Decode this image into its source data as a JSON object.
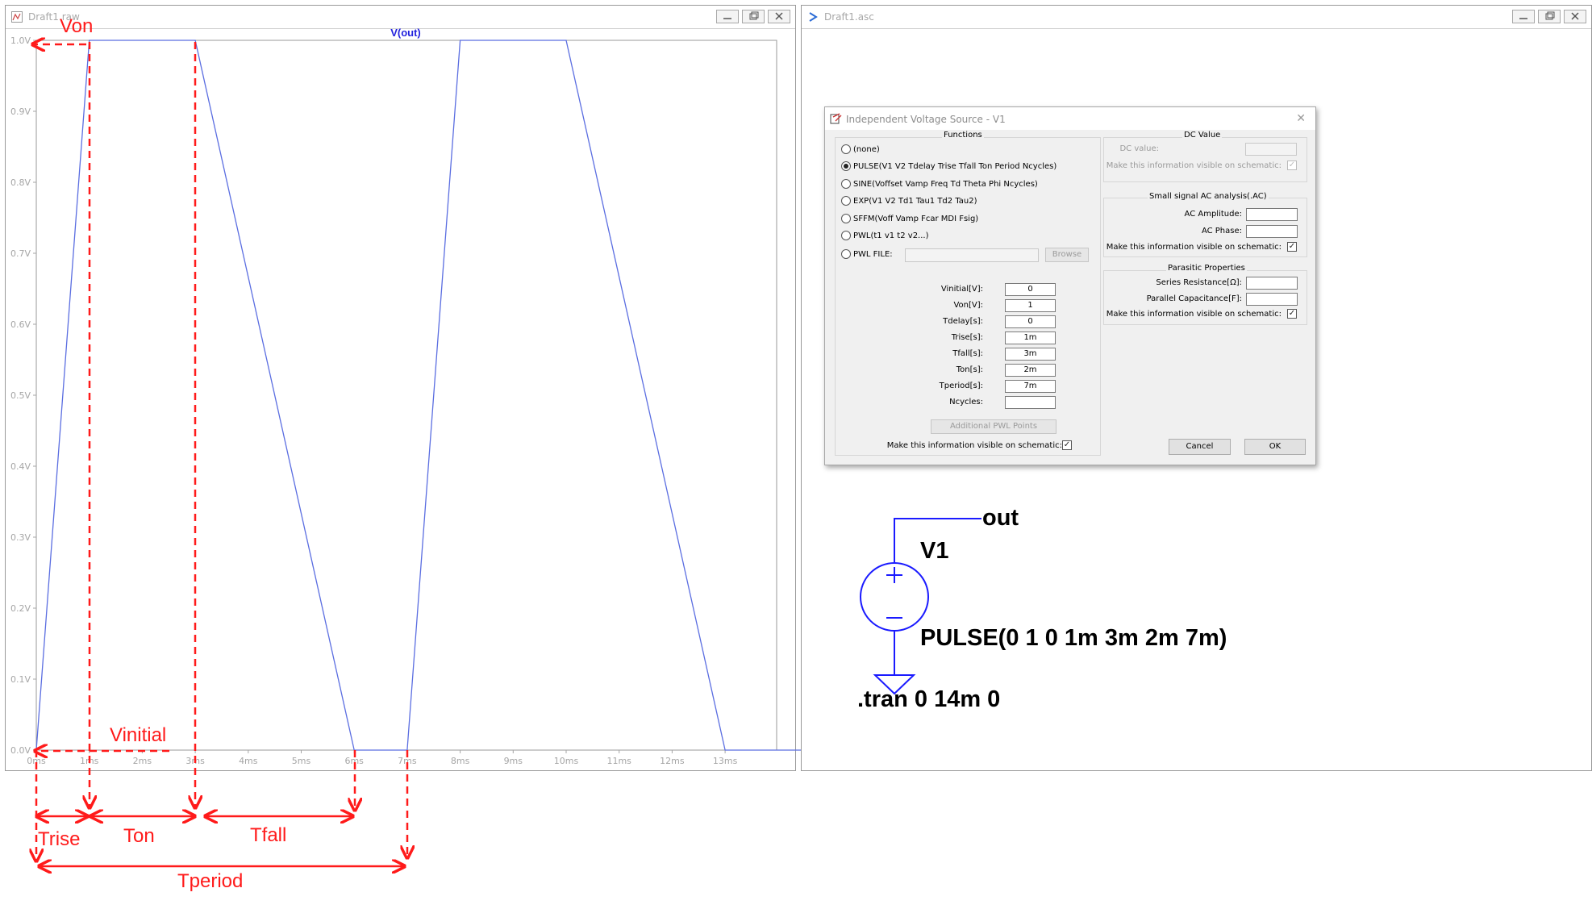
{
  "left_window": {
    "title": "Draft1.raw"
  },
  "right_window": {
    "title": "Draft1.asc"
  },
  "chart_data": {
    "type": "line",
    "title": "V(out)",
    "xlabel": "",
    "ylabel": "",
    "xlim": [
      0,
      14.5
    ],
    "ylim": [
      0,
      1.0
    ],
    "x_ticks": [
      "0ms",
      "1ms",
      "2ms",
      "3ms",
      "4ms",
      "5ms",
      "6ms",
      "7ms",
      "8ms",
      "9ms",
      "10ms",
      "11ms",
      "12ms",
      "13ms"
    ],
    "y_ticks": [
      "0.0V",
      "0.1V",
      "0.2V",
      "0.3V",
      "0.4V",
      "0.5V",
      "0.6V",
      "0.7V",
      "0.8V",
      "0.9V",
      "1.0V"
    ],
    "series": [
      {
        "name": "V(out)",
        "x": [
          0,
          1,
          3,
          6,
          7,
          8,
          10,
          13,
          14.5
        ],
        "y": [
          0,
          1,
          1,
          0,
          0,
          1,
          1,
          0,
          0
        ]
      }
    ],
    "grid": false,
    "colors": {
      "trace": "#5b6ee1",
      "title": "#2222dd",
      "annotation": "#ff1a1a"
    }
  },
  "annotations": {
    "von": "Von",
    "vinitial": "Vinitial",
    "trise": "Trise",
    "ton": "Ton",
    "tfall": "Tfall",
    "tperiod": "Tperiod"
  },
  "dialog": {
    "title": "Independent Voltage Source - V1",
    "functions": {
      "title": "Functions",
      "options": [
        {
          "label": "(none)",
          "selected": false
        },
        {
          "label": "PULSE(V1 V2 Tdelay Trise Tfall Ton Period Ncycles)",
          "selected": true
        },
        {
          "label": "SINE(Voffset Vamp Freq Td Theta Phi Ncycles)",
          "selected": false
        },
        {
          "label": "EXP(V1 V2 Td1 Tau1 Td2 Tau2)",
          "selected": false
        },
        {
          "label": "SFFM(Voff Vamp Fcar MDI Fsig)",
          "selected": false
        },
        {
          "label": "PWL(t1 v1 t2 v2...)",
          "selected": false
        },
        {
          "label": "PWL FILE:",
          "selected": false
        }
      ],
      "browse": "Browse",
      "params": [
        {
          "label": "Vinitial[V]:",
          "value": "0"
        },
        {
          "label": "Von[V]:",
          "value": "1"
        },
        {
          "label": "Tdelay[s]:",
          "value": "0"
        },
        {
          "label": "Trise[s]:",
          "value": "1m"
        },
        {
          "label": "Tfall[s]:",
          "value": "3m"
        },
        {
          "label": "Ton[s]:",
          "value": "2m"
        },
        {
          "label": "Tperiod[s]:",
          "value": "7m"
        },
        {
          "label": "Ncycles:",
          "value": ""
        }
      ],
      "additional_pwl": "Additional PWL Points",
      "visible_label": "Make this information visible on schematic:"
    },
    "dc": {
      "title": "DC Value",
      "dc_value_label": "DC value:",
      "visible_label": "Make this information visible on schematic:"
    },
    "ac": {
      "title": "Small signal AC analysis(.AC)",
      "amplitude_label": "AC Amplitude:",
      "phase_label": "AC Phase:",
      "visible_label": "Make this information visible on schematic:"
    },
    "parasitic": {
      "title": "Parasitic Properties",
      "series_label": "Series Resistance[Ω]:",
      "parallel_label": "Parallel Capacitance[F]:",
      "visible_label": "Make this information visible on schematic:"
    },
    "cancel": "Cancel",
    "ok": "OK"
  },
  "schematic": {
    "net_label": "out",
    "source_name": "V1",
    "source_value": "PULSE(0 1 0 1m 3m 2m 7m)",
    "directive": ".tran 0 14m 0",
    "wire_color": "#1a1aff"
  }
}
